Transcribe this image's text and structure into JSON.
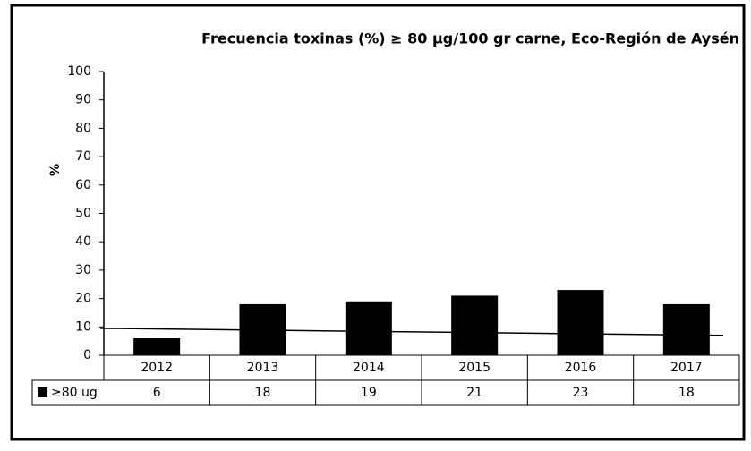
{
  "chart_data": {
    "type": "bar",
    "title": "Frecuencia toxinas (%) ≥ 80 µg/100 gr carne, Eco-Región de Aysén",
    "y_label": "%",
    "categories": [
      "2012",
      "2013",
      "2014",
      "2015",
      "2016",
      "2017"
    ],
    "series": [
      {
        "name": "≥80 ug",
        "color": "#000000",
        "values": [
          6,
          18,
          19,
          21,
          23,
          18
        ]
      }
    ],
    "ylim": [
      0,
      100
    ],
    "yticks": [
      0,
      10,
      20,
      30,
      40,
      50,
      60,
      70,
      80,
      90,
      100
    ],
    "grid": false,
    "trendline": {
      "start": 9.5,
      "end": 7
    }
  }
}
